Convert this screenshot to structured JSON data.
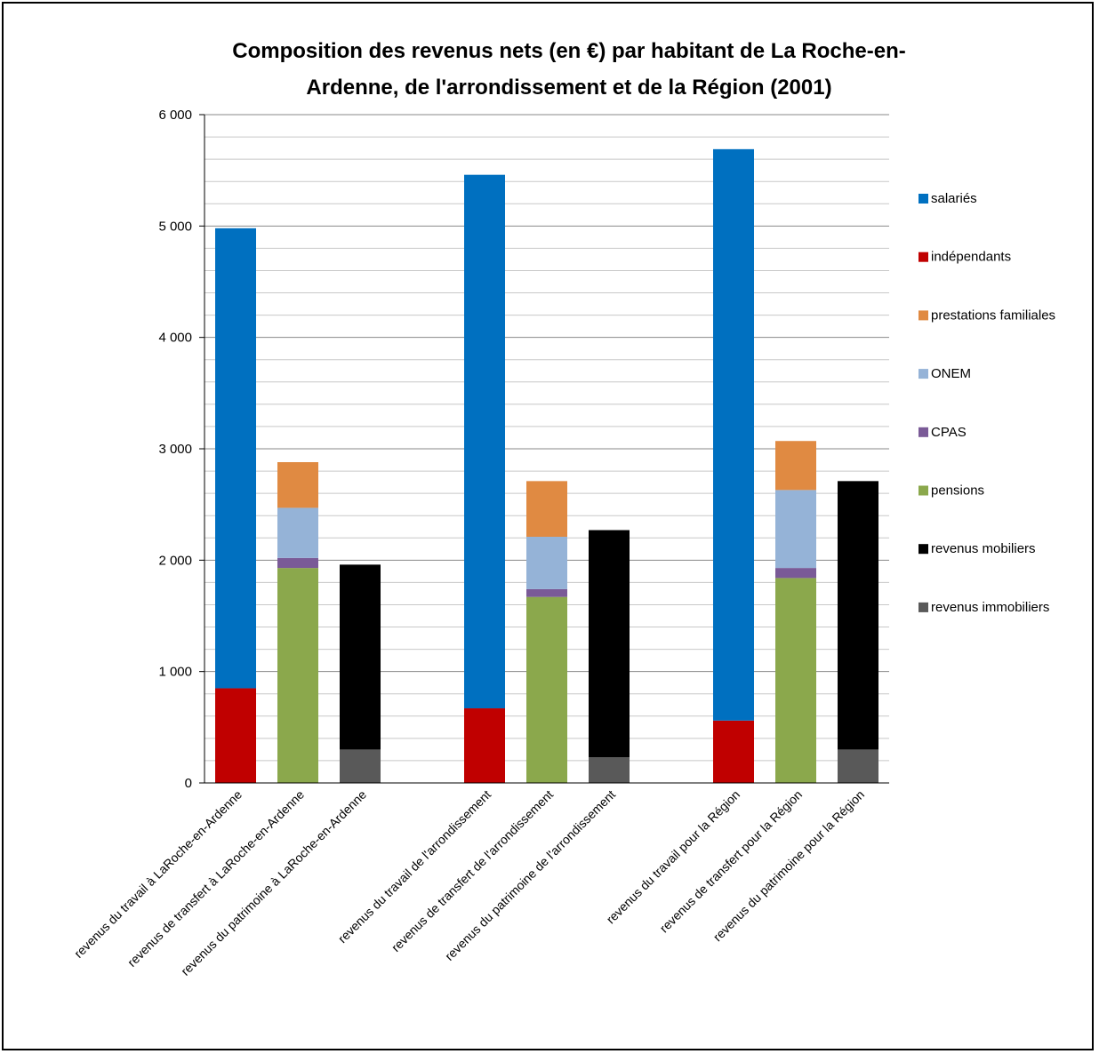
{
  "chart_data": {
    "type": "bar",
    "stacked": true,
    "title_line1": "Composition  des revenus nets (en €) par habitant de La Roche-en-",
    "title_line2": "Ardenne, de l'arrondissement  et de la Région (2001)",
    "ylim": [
      0,
      6000
    ],
    "y_ticks": [
      0,
      1000,
      2000,
      3000,
      4000,
      5000,
      6000
    ],
    "y_tick_labels": [
      "0",
      "1 000",
      "2 000",
      "3 000",
      "4 000",
      "5 000",
      "6 000"
    ],
    "minor_grid_step": 200,
    "grid": true,
    "legend_position": "right",
    "categories": [
      "revenus du travail à LaRoche-en-Ardenne",
      "revenus de transfert à LaRoche-en-Ardenne",
      "revenus du patrimoine à LaRoche-en-Ardenne",
      "",
      "revenus du travail de l'arrondissement",
      "revenus de transfert de l'arrondissement",
      "revenus du patrimoine de l'arrondissement",
      "",
      "revenus du travail pour la Région",
      "revenus de transfert pour la Région",
      "revenus du patrimoine pour la Région"
    ],
    "series": [
      {
        "name": "revenus immobiliers",
        "color": "#595959",
        "values": [
          0,
          0,
          300,
          0,
          0,
          0,
          230,
          0,
          0,
          0,
          300
        ]
      },
      {
        "name": "revenus mobiliers",
        "color": "#000000",
        "values": [
          0,
          0,
          1660,
          0,
          0,
          0,
          2040,
          0,
          0,
          0,
          2410
        ]
      },
      {
        "name": "pensions",
        "color": "#8BA84C",
        "values": [
          0,
          1930,
          0,
          0,
          0,
          1670,
          0,
          0,
          0,
          1840,
          0
        ]
      },
      {
        "name": "CPAS",
        "color": "#7A5A97",
        "values": [
          0,
          90,
          0,
          0,
          0,
          70,
          0,
          0,
          0,
          90,
          0
        ]
      },
      {
        "name": "ONEM",
        "color": "#95B3D7",
        "values": [
          0,
          450,
          0,
          0,
          0,
          470,
          0,
          0,
          0,
          700,
          0
        ]
      },
      {
        "name": "prestations familiales",
        "color": "#E08A42",
        "values": [
          0,
          410,
          0,
          0,
          0,
          500,
          0,
          0,
          0,
          440,
          0
        ]
      },
      {
        "name": "indépendants",
        "color": "#C00000",
        "values": [
          850,
          0,
          0,
          0,
          670,
          0,
          0,
          0,
          560,
          0,
          0
        ]
      },
      {
        "name": "salariés",
        "color": "#0070C0",
        "values": [
          4130,
          0,
          0,
          0,
          4790,
          0,
          0,
          0,
          5130,
          0,
          0
        ]
      }
    ],
    "legend_order": [
      "salariés",
      "indépendants",
      "prestations familiales",
      "ONEM",
      "CPAS",
      "pensions",
      "revenus mobiliers",
      "revenus immobiliers"
    ]
  }
}
